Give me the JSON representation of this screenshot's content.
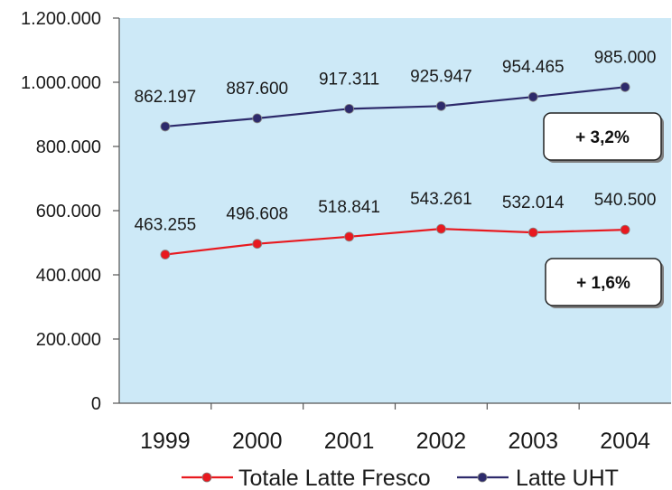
{
  "chart_data": {
    "type": "line",
    "title": "",
    "xlabel": "",
    "ylabel": "",
    "categories": [
      "1999",
      "2000",
      "2001",
      "2002",
      "2003",
      "2004"
    ],
    "ylim": [
      0,
      1200000
    ],
    "yticks": [
      0,
      200000,
      400000,
      600000,
      800000,
      1000000,
      1200000
    ],
    "ytick_labels": [
      "0",
      "200.000",
      "400.000",
      "600.000",
      "800.000",
      "1.000.000",
      "1.200.000"
    ],
    "grid": false,
    "plot_background": "#cde9f7",
    "legend_position": "bottom",
    "series": [
      {
        "name": "Totale Latte Fresco",
        "color": "#e8191f",
        "values": [
          463255,
          496608,
          518841,
          543261,
          532014,
          540500
        ],
        "labels": [
          "463.255",
          "496.608",
          "518.841",
          "543.261",
          "532.014",
          "540.500"
        ],
        "callout": "+ 1,6%"
      },
      {
        "name": "Latte UHT",
        "color": "#2d2a6b",
        "values": [
          862197,
          887600,
          917311,
          925947,
          954465,
          985000
        ],
        "labels": [
          "862.197",
          "887.600",
          "917.311",
          "925.947",
          "954.465",
          "985.000"
        ],
        "callout": "+ 3,2%"
      }
    ]
  }
}
